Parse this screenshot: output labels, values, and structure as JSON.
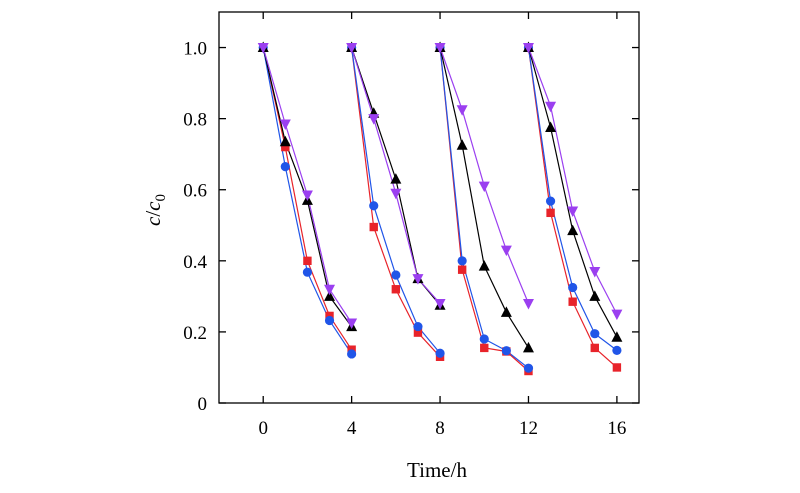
{
  "chart_data": {
    "type": "line",
    "title": "",
    "xlabel": "Time/h",
    "ylabel": {
      "italic_c": "c",
      "slash": "/",
      "italic_c0": "c",
      "sub": "0"
    },
    "xlim": [
      -2,
      17
    ],
    "ylim": [
      0,
      1.1
    ],
    "xticks": [
      0,
      4,
      8,
      12,
      16
    ],
    "xtick_labels": [
      "0",
      "4",
      "8",
      "12",
      "16"
    ],
    "yticks": [
      0,
      0.2,
      0.4,
      0.6,
      0.8,
      1.0
    ],
    "ytick_labels": [
      "0",
      "0.2",
      "0.4",
      "0.6",
      "0.8",
      "1.0"
    ],
    "grid": false,
    "series": [
      {
        "name": "red-square",
        "marker": "square",
        "color": "#e8232a",
        "segments": [
          {
            "x": [
              0,
              1,
              2,
              3,
              4
            ],
            "y": [
              1.0,
              0.72,
              0.4,
              0.245,
              0.15
            ]
          },
          {
            "x": [
              4,
              5,
              6,
              7,
              8
            ],
            "y": [
              1.0,
              0.495,
              0.32,
              0.198,
              0.13
            ]
          },
          {
            "x": [
              8,
              9,
              10,
              11,
              12
            ],
            "y": [
              1.0,
              0.375,
              0.155,
              0.145,
              0.09
            ]
          },
          {
            "x": [
              12,
              13,
              14,
              15,
              16
            ],
            "y": [
              1.0,
              0.535,
              0.285,
              0.155,
              0.1
            ]
          }
        ]
      },
      {
        "name": "blue-circle",
        "marker": "circle",
        "color": "#2055e8",
        "segments": [
          {
            "x": [
              0,
              1,
              2,
              3,
              4
            ],
            "y": [
              1.0,
              0.665,
              0.368,
              0.232,
              0.138
            ]
          },
          {
            "x": [
              4,
              5,
              6,
              7,
              8
            ],
            "y": [
              1.0,
              0.555,
              0.36,
              0.215,
              0.14
            ]
          },
          {
            "x": [
              8,
              9,
              10,
              11,
              12
            ],
            "y": [
              1.0,
              0.4,
              0.18,
              0.147,
              0.098
            ]
          },
          {
            "x": [
              12,
              13,
              14,
              15,
              16
            ],
            "y": [
              1.0,
              0.568,
              0.325,
              0.195,
              0.148
            ]
          }
        ]
      },
      {
        "name": "black-triangle",
        "marker": "triangle-up",
        "color": "#000000",
        "segments": [
          {
            "x": [
              0,
              1,
              2,
              3,
              4
            ],
            "y": [
              1.0,
              0.735,
              0.57,
              0.3,
              0.215
            ]
          },
          {
            "x": [
              4,
              5,
              6,
              7,
              8
            ],
            "y": [
              1.0,
              0.815,
              0.63,
              0.35,
              0.275
            ]
          },
          {
            "x": [
              8,
              9,
              10,
              11,
              12
            ],
            "y": [
              1.0,
              0.725,
              0.385,
              0.255,
              0.155
            ]
          },
          {
            "x": [
              12,
              13,
              14,
              15,
              16
            ],
            "y": [
              1.0,
              0.775,
              0.485,
              0.3,
              0.185
            ]
          }
        ]
      },
      {
        "name": "purple-triangle-down",
        "marker": "triangle-down",
        "color": "#9b3ff0",
        "segments": [
          {
            "x": [
              0,
              1,
              2,
              3,
              4
            ],
            "y": [
              1.0,
              0.785,
              0.585,
              0.32,
              0.225
            ]
          },
          {
            "x": [
              4,
              5,
              6,
              7,
              8
            ],
            "y": [
              1.0,
              0.8,
              0.59,
              0.35,
              0.28
            ]
          },
          {
            "x": [
              8,
              9,
              10,
              11,
              12
            ],
            "y": [
              1.0,
              0.825,
              0.61,
              0.43,
              0.28
            ]
          },
          {
            "x": [
              12,
              13,
              14,
              15,
              16
            ],
            "y": [
              1.0,
              0.835,
              0.54,
              0.37,
              0.25
            ]
          }
        ]
      }
    ]
  }
}
